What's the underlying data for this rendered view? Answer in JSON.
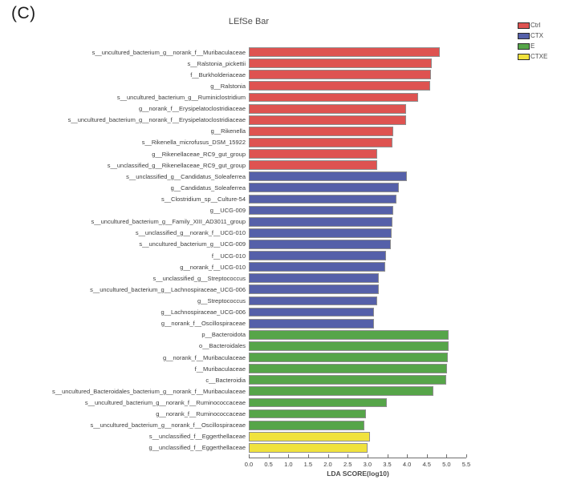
{
  "panel_label": "(C)",
  "title": "LEfSe Bar",
  "legend": [
    {
      "label": "Ctrl",
      "color": "#de5351"
    },
    {
      "label": "CTX",
      "color": "#5560a9"
    },
    {
      "label": "E",
      "color": "#56a549"
    },
    {
      "label": "CTXE",
      "color": "#f0e23d"
    }
  ],
  "chart_data": {
    "type": "bar",
    "orientation": "horizontal",
    "title": "LEfSe Bar",
    "xlabel": "LDA SCORE(log10)",
    "xlim": [
      0,
      5.5
    ],
    "xticks": [
      0.0,
      0.5,
      1.0,
      1.5,
      2.0,
      2.5,
      3.0,
      3.5,
      4.0,
      4.5,
      5.0,
      5.5
    ],
    "grid": false,
    "legend_position": "top-right",
    "group_colors": {
      "Ctrl": "#de5351",
      "CTX": "#5560a9",
      "E": "#56a549",
      "CTXE": "#f0e23d"
    },
    "bars": [
      {
        "label": "s__uncultured_bacterium_g__norank_f__Muribaculaceae",
        "group": "Ctrl",
        "value": 4.83
      },
      {
        "label": "s__Ralstonia_pickettii",
        "group": "Ctrl",
        "value": 4.62
      },
      {
        "label": "f__Burkholderiaceae",
        "group": "Ctrl",
        "value": 4.6
      },
      {
        "label": "g__Ralstonia",
        "group": "Ctrl",
        "value": 4.59
      },
      {
        "label": "s__uncultured_bacterium_g__Ruminiclostridium",
        "group": "Ctrl",
        "value": 4.28
      },
      {
        "label": "g__norank_f__Erysipelatoclostridiaceae",
        "group": "Ctrl",
        "value": 3.98
      },
      {
        "label": "s__uncultured_bacterium_g__norank_f__Erysipelatoclostridiaceae",
        "group": "Ctrl",
        "value": 3.97
      },
      {
        "label": "g__Rikenella",
        "group": "Ctrl",
        "value": 3.66
      },
      {
        "label": "s__Rikenella_microfusus_DSM_15922",
        "group": "Ctrl",
        "value": 3.63
      },
      {
        "label": "g__Rikenellaceae_RC9_gut_group",
        "group": "Ctrl",
        "value": 3.25
      },
      {
        "label": "s__unclassified_g__Rikenellaceae_RC9_gut_group",
        "group": "Ctrl",
        "value": 3.24
      },
      {
        "label": "s__unclassified_g__Candidatus_Soleaferrea",
        "group": "CTX",
        "value": 4.0
      },
      {
        "label": "g__Candidatus_Soleaferrea",
        "group": "CTX",
        "value": 3.8
      },
      {
        "label": "s__Clostridium_sp__Culture-54",
        "group": "CTX",
        "value": 3.73
      },
      {
        "label": "g__UCG-009",
        "group": "CTX",
        "value": 3.65
      },
      {
        "label": "s__uncultured_bacterium_g__Family_XIII_AD3011_group",
        "group": "CTX",
        "value": 3.63
      },
      {
        "label": "s__unclassified_g__norank_f__UCG-010",
        "group": "CTX",
        "value": 3.62
      },
      {
        "label": "s__uncultured_bacterium_g__UCG-009",
        "group": "CTX",
        "value": 3.59
      },
      {
        "label": "f__UCG-010",
        "group": "CTX",
        "value": 3.46
      },
      {
        "label": "g__norank_f__UCG-010",
        "group": "CTX",
        "value": 3.45
      },
      {
        "label": "s__unclassified_g__Streptococcus",
        "group": "CTX",
        "value": 3.29
      },
      {
        "label": "s__uncultured_bacterium_g__Lachnospiraceae_UCG-006",
        "group": "CTX",
        "value": 3.28
      },
      {
        "label": "g__Streptococcus",
        "group": "CTX",
        "value": 3.24
      },
      {
        "label": "g__Lachnospiraceae_UCG-006",
        "group": "CTX",
        "value": 3.17
      },
      {
        "label": "g__norank_f__Oscillospiraceae",
        "group": "CTX",
        "value": 3.16
      },
      {
        "label": "p__Bacteroidota",
        "group": "E",
        "value": 5.06
      },
      {
        "label": "o__Bacteroidales",
        "group": "E",
        "value": 5.05
      },
      {
        "label": "g__norank_f__Muribaculaceae",
        "group": "E",
        "value": 5.03
      },
      {
        "label": "f__Muribaculaceae",
        "group": "E",
        "value": 5.02
      },
      {
        "label": "c__Bacteroidia",
        "group": "E",
        "value": 5.0
      },
      {
        "label": "s__uncultured_Bacteroidales_bacterium_g__norank_f__Muribaculaceae",
        "group": "E",
        "value": 4.66
      },
      {
        "label": "s__uncultured_bacterium_g__norank_f__Ruminococcaceae",
        "group": "E",
        "value": 3.49
      },
      {
        "label": "g__norank_f__Ruminococcaceae",
        "group": "E",
        "value": 2.96
      },
      {
        "label": "s__uncultured_bacterium_g__norank_f__Oscillospiraceae",
        "group": "E",
        "value": 2.92
      },
      {
        "label": "s__unclassified_f__Eggerthellaceae",
        "group": "CTXE",
        "value": 3.06
      },
      {
        "label": "g__unclassified_f__Eggerthellaceae",
        "group": "CTXE",
        "value": 3.0
      }
    ]
  }
}
